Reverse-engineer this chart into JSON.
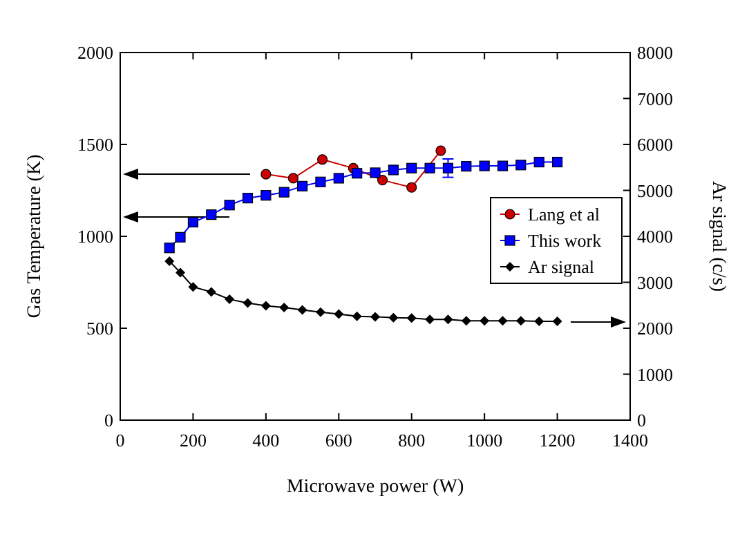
{
  "chart_data": {
    "type": "line",
    "xlabel": "Microwave power (W)",
    "ylabel": "Gas Temperature (K)",
    "y2label": "Ar signal (c/s)",
    "xlim": [
      0,
      1400
    ],
    "xticks": [
      0,
      200,
      400,
      600,
      800,
      1000,
      1200,
      1400
    ],
    "ylim": [
      0,
      2000
    ],
    "yticks": [
      0,
      500,
      1000,
      1500,
      2000
    ],
    "y2lim": [
      0,
      8000
    ],
    "y2ticks": [
      0,
      1000,
      2000,
      3000,
      4000,
      5000,
      6000,
      7000,
      8000
    ],
    "legend": "right",
    "grid": false,
    "series": [
      {
        "name": "Lang et al",
        "color": "#cc0000",
        "marker": "circle",
        "x": [
          400,
          475,
          555,
          640,
          720,
          800,
          880
        ],
        "values": [
          1338,
          1316,
          1418,
          1371,
          1306,
          1266,
          1466
        ]
      },
      {
        "name": "This work",
        "color": "#0000ff",
        "marker": "square",
        "x": [
          135,
          165,
          200,
          250,
          300,
          350,
          400,
          450,
          500,
          550,
          600,
          650,
          700,
          750,
          800,
          850,
          900,
          950,
          1000,
          1050,
          1100,
          1150,
          1200
        ],
        "values": [
          937,
          995,
          1077,
          1118,
          1170,
          1208,
          1223,
          1240,
          1273,
          1296,
          1316,
          1343,
          1346,
          1361,
          1371,
          1371,
          1371,
          1381,
          1383,
          1383,
          1388,
          1404,
          1404
        ],
        "errors": [
          null,
          null,
          null,
          null,
          null,
          null,
          null,
          null,
          null,
          null,
          null,
          null,
          null,
          null,
          null,
          null,
          50,
          null,
          null,
          null,
          null,
          null,
          null
        ]
      },
      {
        "name": "Ar signal",
        "color": "#000000",
        "marker": "diamond",
        "axis": "y2",
        "x": [
          135,
          165,
          200,
          250,
          300,
          350,
          400,
          450,
          500,
          550,
          600,
          650,
          700,
          750,
          800,
          850,
          900,
          950,
          1000,
          1050,
          1100,
          1150,
          1200
        ],
        "values": [
          3460,
          3210,
          2900,
          2790,
          2630,
          2550,
          2490,
          2450,
          2400,
          2350,
          2310,
          2260,
          2250,
          2230,
          2220,
          2190,
          2190,
          2160,
          2160,
          2160,
          2160,
          2150,
          2150
        ]
      }
    ]
  }
}
